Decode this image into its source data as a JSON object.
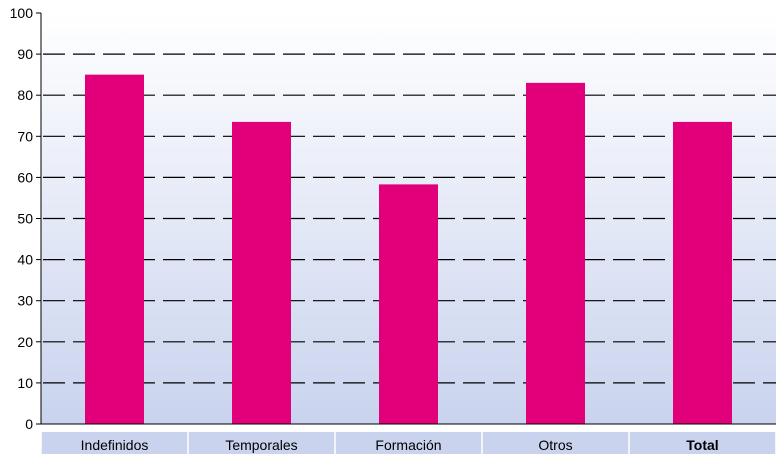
{
  "chart_data": {
    "type": "bar",
    "categories": [
      "Indefinidos",
      "Temporales",
      "Formación",
      "Otros",
      "Total"
    ],
    "emphasized_category": "Total",
    "values": [
      85,
      73.5,
      58.3,
      83,
      73.5
    ],
    "ylim": [
      0,
      100
    ],
    "yticks": [
      0,
      10,
      20,
      30,
      40,
      50,
      60,
      70,
      80,
      90,
      100
    ],
    "grid": "horizontal-dashed",
    "bar_color": "#e2007a",
    "plot_background_top": "#ffffff",
    "plot_background_bottom": "#c9d3ee",
    "axis_strip_color": "#c9d3ee"
  }
}
